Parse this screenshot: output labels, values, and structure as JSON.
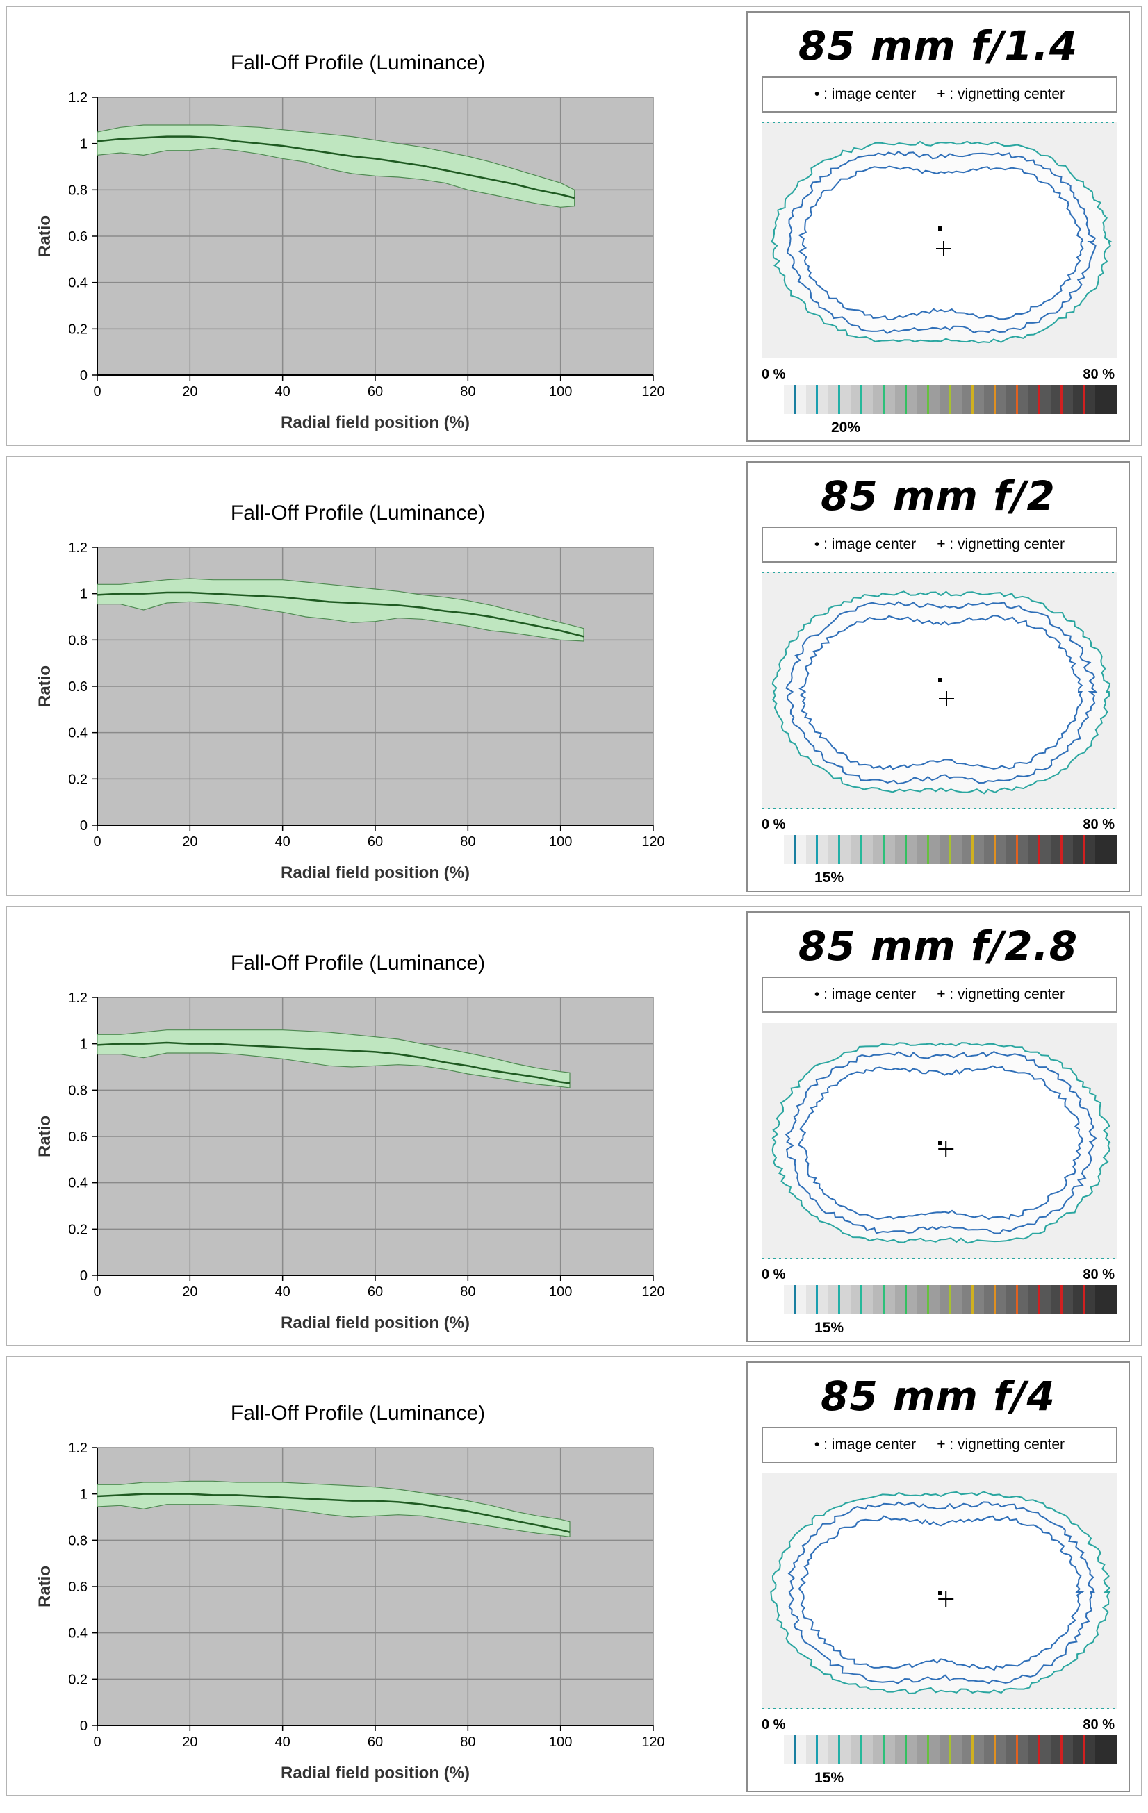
{
  "rows": [
    {
      "chart_data": {
        "type": "area",
        "title": "Fall-Off Profile (Luminance)",
        "xlabel": "Radial field position (%)",
        "ylabel": "Ratio",
        "xlim": [
          0,
          120
        ],
        "ylim": [
          0,
          1.2
        ],
        "xticks": [
          "0",
          "20",
          "40",
          "60",
          "80",
          "100",
          "120"
        ],
        "yticks": [
          "0",
          "0.2",
          "0.4",
          "0.6",
          "0.8",
          "1",
          "1.2"
        ],
        "grid": true,
        "series": [
          {
            "x": [
              0,
              5,
              10,
              15,
              20,
              25,
              30,
              35,
              40,
              45,
              50,
              55,
              60,
              65,
              70,
              75,
              80,
              85,
              90,
              95,
              100,
              103
            ],
            "mean": [
              1.01,
              1.02,
              1.025,
              1.03,
              1.03,
              1.025,
              1.01,
              1.0,
              0.99,
              0.975,
              0.96,
              0.945,
              0.935,
              0.92,
              0.905,
              0.885,
              0.865,
              0.845,
              0.825,
              0.8,
              0.78,
              0.765
            ],
            "upper": [
              1.05,
              1.07,
              1.08,
              1.08,
              1.08,
              1.08,
              1.075,
              1.07,
              1.06,
              1.05,
              1.04,
              1.03,
              1.015,
              1.0,
              0.985,
              0.965,
              0.945,
              0.92,
              0.89,
              0.86,
              0.83,
              0.8
            ],
            "lower": [
              0.95,
              0.96,
              0.95,
              0.97,
              0.97,
              0.98,
              0.97,
              0.955,
              0.935,
              0.92,
              0.89,
              0.87,
              0.86,
              0.855,
              0.845,
              0.83,
              0.8,
              0.78,
              0.76,
              0.74,
              0.725,
              0.73
            ]
          }
        ]
      },
      "lens_title": "85 mm f/1.4",
      "legend_image_center": "• : image center",
      "legend_vignetting_center": "+ : vignetting center",
      "scale_min_label": "0 %",
      "scale_max_label": "80 %",
      "threshold_label": "20%"
    },
    {
      "chart_data": {
        "type": "area",
        "title": "Fall-Off Profile (Luminance)",
        "xlabel": "Radial field position (%)",
        "ylabel": "Ratio",
        "xlim": [
          0,
          120
        ],
        "ylim": [
          0,
          1.2
        ],
        "xticks": [
          "0",
          "20",
          "40",
          "60",
          "80",
          "100",
          "120"
        ],
        "yticks": [
          "0",
          "0.2",
          "0.4",
          "0.6",
          "0.8",
          "1",
          "1.2"
        ],
        "grid": true,
        "series": [
          {
            "x": [
              0,
              5,
              10,
              15,
              20,
              25,
              30,
              35,
              40,
              45,
              50,
              55,
              60,
              65,
              70,
              75,
              80,
              85,
              90,
              95,
              100,
              105
            ],
            "mean": [
              0.995,
              1.0,
              1.0,
              1.005,
              1.005,
              1.0,
              0.995,
              0.99,
              0.985,
              0.975,
              0.965,
              0.96,
              0.955,
              0.95,
              0.94,
              0.925,
              0.915,
              0.9,
              0.88,
              0.86,
              0.84,
              0.815
            ],
            "upper": [
              1.04,
              1.04,
              1.05,
              1.06,
              1.065,
              1.06,
              1.06,
              1.06,
              1.06,
              1.05,
              1.04,
              1.03,
              1.02,
              1.01,
              0.995,
              0.985,
              0.97,
              0.95,
              0.925,
              0.9,
              0.875,
              0.85
            ],
            "lower": [
              0.955,
              0.955,
              0.93,
              0.96,
              0.965,
              0.96,
              0.95,
              0.935,
              0.92,
              0.9,
              0.89,
              0.875,
              0.88,
              0.895,
              0.89,
              0.875,
              0.86,
              0.84,
              0.83,
              0.815,
              0.8,
              0.795
            ]
          }
        ]
      },
      "lens_title": "85 mm f/2",
      "legend_image_center": "• : image center",
      "legend_vignetting_center": "+ : vignetting center",
      "scale_min_label": "0 %",
      "scale_max_label": "80 %",
      "threshold_label": "15%"
    },
    {
      "chart_data": {
        "type": "area",
        "title": "Fall-Off Profile (Luminance)",
        "xlabel": "Radial field position (%)",
        "ylabel": "Ratio",
        "xlim": [
          0,
          120
        ],
        "ylim": [
          0,
          1.2
        ],
        "xticks": [
          "0",
          "20",
          "40",
          "60",
          "80",
          "100",
          "120"
        ],
        "yticks": [
          "0",
          "0.2",
          "0.4",
          "0.6",
          "0.8",
          "1",
          "1.2"
        ],
        "grid": true,
        "series": [
          {
            "x": [
              0,
              5,
              10,
              15,
              20,
              25,
              30,
              35,
              40,
              45,
              50,
              55,
              60,
              65,
              70,
              75,
              80,
              85,
              90,
              95,
              100,
              102
            ],
            "mean": [
              0.995,
              1.0,
              1.0,
              1.005,
              1.0,
              1.0,
              0.995,
              0.99,
              0.985,
              0.98,
              0.975,
              0.97,
              0.965,
              0.955,
              0.94,
              0.92,
              0.905,
              0.885,
              0.87,
              0.855,
              0.835,
              0.83
            ],
            "upper": [
              1.04,
              1.04,
              1.05,
              1.06,
              1.06,
              1.06,
              1.06,
              1.06,
              1.06,
              1.055,
              1.05,
              1.04,
              1.03,
              1.02,
              1.0,
              0.98,
              0.96,
              0.94,
              0.915,
              0.895,
              0.88,
              0.875
            ],
            "lower": [
              0.955,
              0.955,
              0.94,
              0.96,
              0.96,
              0.96,
              0.955,
              0.945,
              0.935,
              0.92,
              0.905,
              0.9,
              0.905,
              0.91,
              0.905,
              0.89,
              0.87,
              0.855,
              0.84,
              0.825,
              0.815,
              0.81
            ]
          }
        ]
      },
      "lens_title": "85 mm f/2.8",
      "legend_image_center": "• : image center",
      "legend_vignetting_center": "+ : vignetting center",
      "scale_min_label": "0 %",
      "scale_max_label": "80 %",
      "threshold_label": "15%"
    },
    {
      "chart_data": {
        "type": "area",
        "title": "Fall-Off Profile (Luminance)",
        "xlabel": "Radial field position (%)",
        "ylabel": "Ratio",
        "xlim": [
          0,
          120
        ],
        "ylim": [
          0,
          1.2
        ],
        "xticks": [
          "0",
          "20",
          "40",
          "60",
          "80",
          "100",
          "120"
        ],
        "yticks": [
          "0",
          "0.2",
          "0.4",
          "0.6",
          "0.8",
          "1",
          "1.2"
        ],
        "grid": true,
        "series": [
          {
            "x": [
              0,
              5,
              10,
              15,
              20,
              25,
              30,
              35,
              40,
              45,
              50,
              55,
              60,
              65,
              70,
              75,
              80,
              85,
              90,
              95,
              100,
              102
            ],
            "mean": [
              0.99,
              0.995,
              1.0,
              1.0,
              1.0,
              0.995,
              0.995,
              0.99,
              0.985,
              0.98,
              0.975,
              0.97,
              0.97,
              0.965,
              0.955,
              0.94,
              0.925,
              0.905,
              0.885,
              0.865,
              0.845,
              0.835
            ],
            "upper": [
              1.04,
              1.04,
              1.05,
              1.05,
              1.055,
              1.055,
              1.05,
              1.05,
              1.05,
              1.045,
              1.04,
              1.035,
              1.03,
              1.02,
              1.005,
              0.99,
              0.97,
              0.95,
              0.925,
              0.905,
              0.89,
              0.88
            ],
            "lower": [
              0.945,
              0.95,
              0.935,
              0.955,
              0.955,
              0.955,
              0.95,
              0.945,
              0.935,
              0.925,
              0.91,
              0.9,
              0.905,
              0.91,
              0.905,
              0.89,
              0.875,
              0.86,
              0.845,
              0.83,
              0.82,
              0.815
            ]
          }
        ]
      },
      "lens_title": "85 mm f/4",
      "legend_image_center": "• : image center",
      "legend_vignetting_center": "+ : vignetting center",
      "scale_min_label": "0 %",
      "scale_max_label": "80 %",
      "threshold_label": "15%"
    }
  ],
  "colors": {
    "plot_bg": "#c0c0c0",
    "grid": "#8a8a8a",
    "band_fill": "#bfe6c0",
    "band_edge": "#4f8a52",
    "mean_line": "#1f5a22",
    "contour_outer": "#2aa6a0",
    "contour_inner": "#2f6fb8",
    "scale_ticks": [
      "#1a7fa0",
      "#1a9fb0",
      "#22b0a8",
      "#26b89a",
      "#2cc07a",
      "#33c060",
      "#66c040",
      "#a8c030",
      "#d0b020",
      "#e09020",
      "#e06020",
      "#d02020"
    ]
  }
}
